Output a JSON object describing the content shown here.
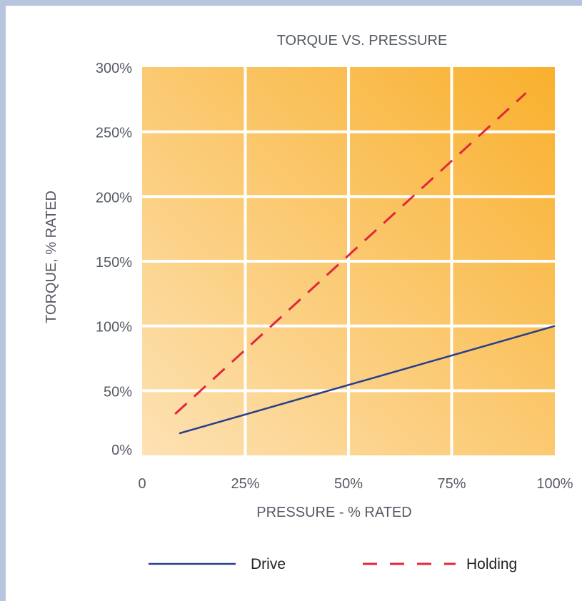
{
  "chart_data": {
    "type": "line",
    "title": "TORQUE VS. PRESSURE",
    "xlabel": "PRESSURE -  % RATED",
    "ylabel": "TORQUE, % RATED",
    "x_ticks": [
      "0",
      "25%",
      "50%",
      "75%",
      "100%"
    ],
    "y_ticks": [
      "0%",
      "50%",
      "100%",
      "150%",
      "200%",
      "250%",
      "300%"
    ],
    "xlim": [
      0,
      100
    ],
    "ylim": [
      0,
      300
    ],
    "grid": true,
    "legend_position": "bottom",
    "series": [
      {
        "name": "Drive",
        "style": "solid",
        "color": "#27408b",
        "x": [
          9,
          100
        ],
        "y": [
          17,
          100
        ]
      },
      {
        "name": "Holding",
        "style": "dashed",
        "color": "#e0283c",
        "x": [
          8,
          93
        ],
        "y": [
          32,
          280
        ]
      }
    ]
  },
  "colors": {
    "plot_bg_light": "#fde2b4",
    "plot_bg_dark": "#f9b02d",
    "grid": "#ffffff",
    "text": "#555a63",
    "frame_bg": "#b7c6dd"
  }
}
